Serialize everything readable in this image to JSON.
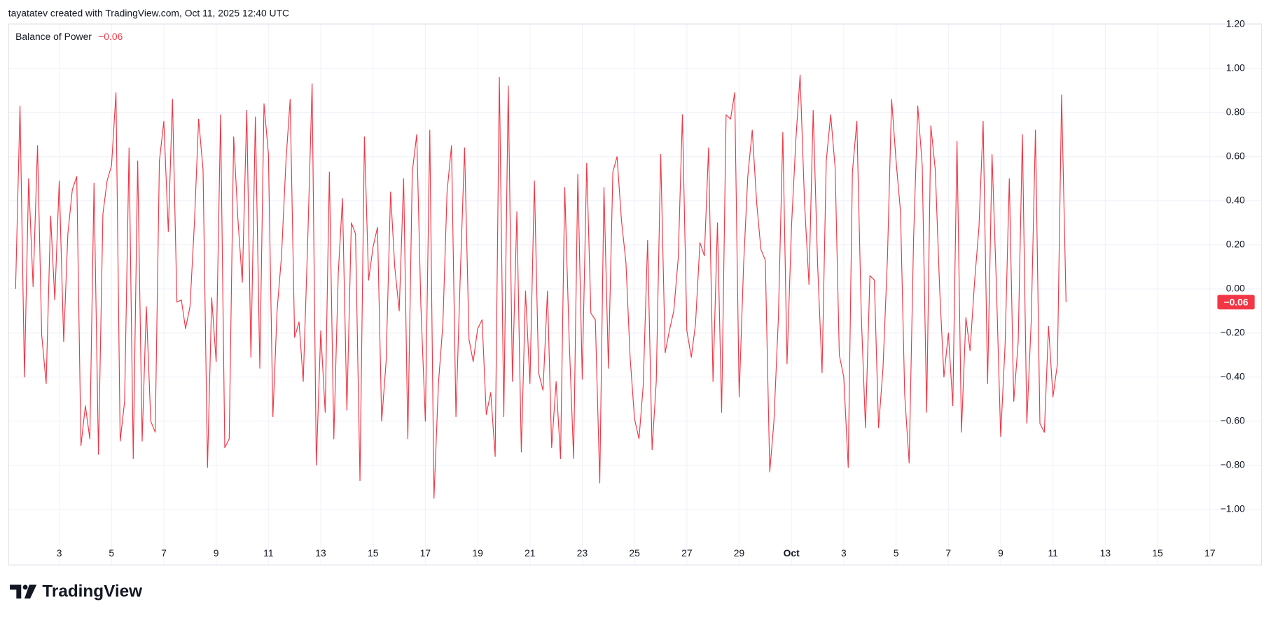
{
  "header": {
    "text": "tayatatev created with TradingView.com, Oct 11, 2025 12:40 UTC"
  },
  "logo": {
    "text": "TradingView"
  },
  "chart_data": {
    "type": "line",
    "current_value_label": "−0.06",
    "x": [
      1.33,
      1.5,
      1.67,
      1.83,
      2,
      2.17,
      2.33,
      2.5,
      2.67,
      2.83,
      3,
      3.17,
      3.33,
      3.5,
      3.67,
      3.83,
      4,
      4.17,
      4.33,
      4.5,
      4.67,
      4.83,
      5,
      5.17,
      5.33,
      5.5,
      5.67,
      5.83,
      6,
      6.17,
      6.33,
      6.5,
      6.67,
      6.83,
      7,
      7.17,
      7.33,
      7.5,
      7.67,
      7.83,
      8,
      8.17,
      8.33,
      8.5,
      8.67,
      8.83,
      9,
      9.17,
      9.33,
      9.5,
      9.67,
      9.83,
      10,
      10.17,
      10.33,
      10.5,
      10.67,
      10.83,
      11,
      11.17,
      11.33,
      11.5,
      11.67,
      11.83,
      12,
      12.17,
      12.33,
      12.5,
      12.67,
      12.83,
      13,
      13.17,
      13.33,
      13.5,
      13.67,
      13.83,
      14,
      14.17,
      14.33,
      14.5,
      14.67,
      14.83,
      15,
      15.17,
      15.33,
      15.5,
      15.67,
      15.83,
      16,
      16.17,
      16.33,
      16.5,
      16.67,
      16.83,
      17,
      17.17,
      17.33,
      17.5,
      17.67,
      17.83,
      18,
      18.17,
      18.33,
      18.5,
      18.67,
      18.83,
      19,
      19.17,
      19.33,
      19.5,
      19.67,
      19.83,
      20,
      20.17,
      20.33,
      20.5,
      20.67,
      20.83,
      21,
      21.17,
      21.33,
      21.5,
      21.67,
      21.83,
      22,
      22.17,
      22.33,
      22.5,
      22.67,
      22.83,
      23,
      23.17,
      23.33,
      23.5,
      23.67,
      23.83,
      24,
      24.17,
      24.33,
      24.5,
      24.67,
      24.83,
      25,
      25.17,
      25.33,
      25.5,
      25.67,
      25.83,
      26,
      26.17,
      26.33,
      26.5,
      26.67,
      26.83,
      27,
      27.17,
      27.33,
      27.5,
      27.67,
      27.83,
      28,
      28.17,
      28.33,
      28.5,
      28.67,
      28.83,
      29,
      29.17,
      29.33,
      29.5,
      29.67,
      29.83,
      30,
      30.17,
      30.33,
      30.5,
      30.67,
      30.83,
      31,
      31.17,
      31.33,
      31.5,
      31.67,
      31.83,
      32,
      32.17,
      32.33,
      32.5,
      32.67,
      32.83,
      33,
      33.17,
      33.33,
      33.5,
      33.67,
      33.83,
      34,
      34.17,
      34.33,
      34.5,
      34.67,
      34.83,
      35,
      35.17,
      35.33,
      35.5,
      35.67,
      35.83,
      36,
      36.17,
      36.33,
      36.5,
      36.67,
      36.83,
      37,
      37.17,
      37.33,
      37.5,
      37.67,
      37.83,
      38,
      38.17,
      38.33,
      38.5,
      38.67,
      38.83,
      39,
      39.17,
      39.33,
      39.5,
      39.67,
      39.83,
      40,
      40.17,
      40.33,
      40.5,
      40.67,
      40.83,
      41,
      41.17,
      41.33,
      41.5
    ],
    "series": [
      {
        "name": "Balance of Power",
        "color": "#f23645",
        "values": [
          0.0,
          0.83,
          -0.4,
          0.5,
          0.01,
          0.65,
          -0.21,
          -0.43,
          0.33,
          -0.05,
          0.49,
          -0.24,
          0.25,
          0.45,
          0.51,
          -0.71,
          -0.53,
          -0.68,
          0.48,
          -0.75,
          0.34,
          0.49,
          0.56,
          0.89,
          -0.69,
          -0.51,
          0.64,
          -0.77,
          0.58,
          -0.69,
          -0.08,
          -0.6,
          -0.65,
          0.58,
          0.76,
          0.26,
          0.86,
          -0.06,
          -0.05,
          -0.18,
          -0.08,
          0.3,
          0.77,
          0.54,
          -0.81,
          -0.04,
          -0.33,
          0.79,
          -0.72,
          -0.68,
          0.69,
          0.32,
          0.03,
          0.81,
          -0.31,
          0.78,
          -0.36,
          0.84,
          0.61,
          -0.58,
          -0.1,
          0.15,
          0.58,
          0.86,
          -0.22,
          -0.15,
          -0.42,
          0.21,
          0.93,
          -0.8,
          -0.19,
          -0.56,
          0.53,
          -0.68,
          0.07,
          0.41,
          -0.55,
          0.3,
          0.25,
          -0.87,
          0.69,
          0.04,
          0.19,
          0.28,
          -0.6,
          -0.33,
          0.44,
          0.1,
          -0.1,
          0.5,
          -0.68,
          0.53,
          0.7,
          -0.08,
          -0.6,
          0.72,
          -0.95,
          -0.43,
          -0.16,
          0.44,
          0.65,
          -0.58,
          0.04,
          0.64,
          -0.23,
          -0.33,
          -0.18,
          -0.14,
          -0.57,
          -0.47,
          -0.76,
          0.96,
          -0.58,
          0.92,
          -0.42,
          0.35,
          -0.74,
          -0.01,
          -0.43,
          0.49,
          -0.38,
          -0.46,
          -0.01,
          -0.72,
          -0.42,
          -0.77,
          0.46,
          -0.23,
          -0.77,
          0.52,
          -0.41,
          0.57,
          -0.11,
          -0.14,
          -0.88,
          0.46,
          -0.36,
          0.53,
          0.6,
          0.31,
          0.12,
          -0.31,
          -0.59,
          -0.68,
          -0.44,
          0.22,
          -0.73,
          -0.42,
          0.61,
          -0.29,
          -0.19,
          -0.1,
          0.14,
          0.79,
          -0.19,
          -0.31,
          -0.16,
          0.21,
          0.15,
          0.64,
          -0.42,
          0.3,
          -0.56,
          0.79,
          0.77,
          0.89,
          -0.49,
          0.11,
          0.51,
          0.72,
          0.39,
          0.18,
          0.13,
          -0.83,
          -0.6,
          -0.13,
          0.71,
          -0.34,
          0.28,
          0.68,
          0.97,
          0.39,
          0.02,
          0.81,
          0.11,
          -0.38,
          0.58,
          0.79,
          0.55,
          -0.3,
          -0.4,
          -0.81,
          0.53,
          0.76,
          -0.12,
          -0.63,
          0.06,
          0.04,
          -0.63,
          -0.36,
          0.14,
          0.86,
          0.58,
          0.35,
          -0.48,
          -0.79,
          0.23,
          0.83,
          0.56,
          -0.56,
          0.74,
          0.54,
          -0.01,
          -0.4,
          -0.2,
          -0.53,
          0.67,
          -0.65,
          -0.13,
          -0.28,
          0.03,
          0.28,
          0.76,
          -0.43,
          0.61,
          0.04,
          -0.67,
          -0.25,
          0.5,
          -0.51,
          -0.24,
          0.7,
          -0.61,
          -0.14,
          0.72,
          -0.61,
          -0.65,
          -0.17,
          -0.49,
          -0.34,
          0.88,
          -0.06
        ]
      }
    ],
    "xlim": [
      1.05,
      48.96
    ],
    "xticks": [
      3,
      5,
      7,
      9,
      11,
      13,
      15,
      17,
      19,
      21,
      23,
      25,
      27,
      29,
      {
        "value": 31,
        "label": "Oct"
      },
      {
        "value": 33,
        "label": "3"
      },
      {
        "value": 35,
        "label": "5"
      },
      {
        "value": 37,
        "label": "7"
      },
      {
        "value": 39,
        "label": "9"
      },
      {
        "value": 41,
        "label": "11"
      },
      {
        "value": 43,
        "label": "13"
      },
      {
        "value": 45,
        "label": "15"
      },
      {
        "value": 47,
        "label": "17"
      }
    ],
    "ylim": [
      -1.25,
      1.2
    ],
    "yticks": [
      {
        "value": 1.2,
        "label": "1.20"
      },
      {
        "value": 1,
        "label": "1.00"
      },
      {
        "value": 0.8,
        "label": "0.80"
      },
      {
        "value": 0.6,
        "label": "0.60"
      },
      {
        "value": 0.4,
        "label": "0.40"
      },
      {
        "value": 0.2,
        "label": "0.20"
      },
      {
        "value": 0,
        "label": "0.00"
      },
      {
        "value": -0.2,
        "label": "−0.20"
      },
      {
        "value": -0.4,
        "label": "−0.40"
      },
      {
        "value": -0.6,
        "label": "−0.60"
      },
      {
        "value": -0.8,
        "label": "−0.80"
      },
      {
        "value": -1,
        "label": "−1.00"
      }
    ],
    "grid": true
  }
}
